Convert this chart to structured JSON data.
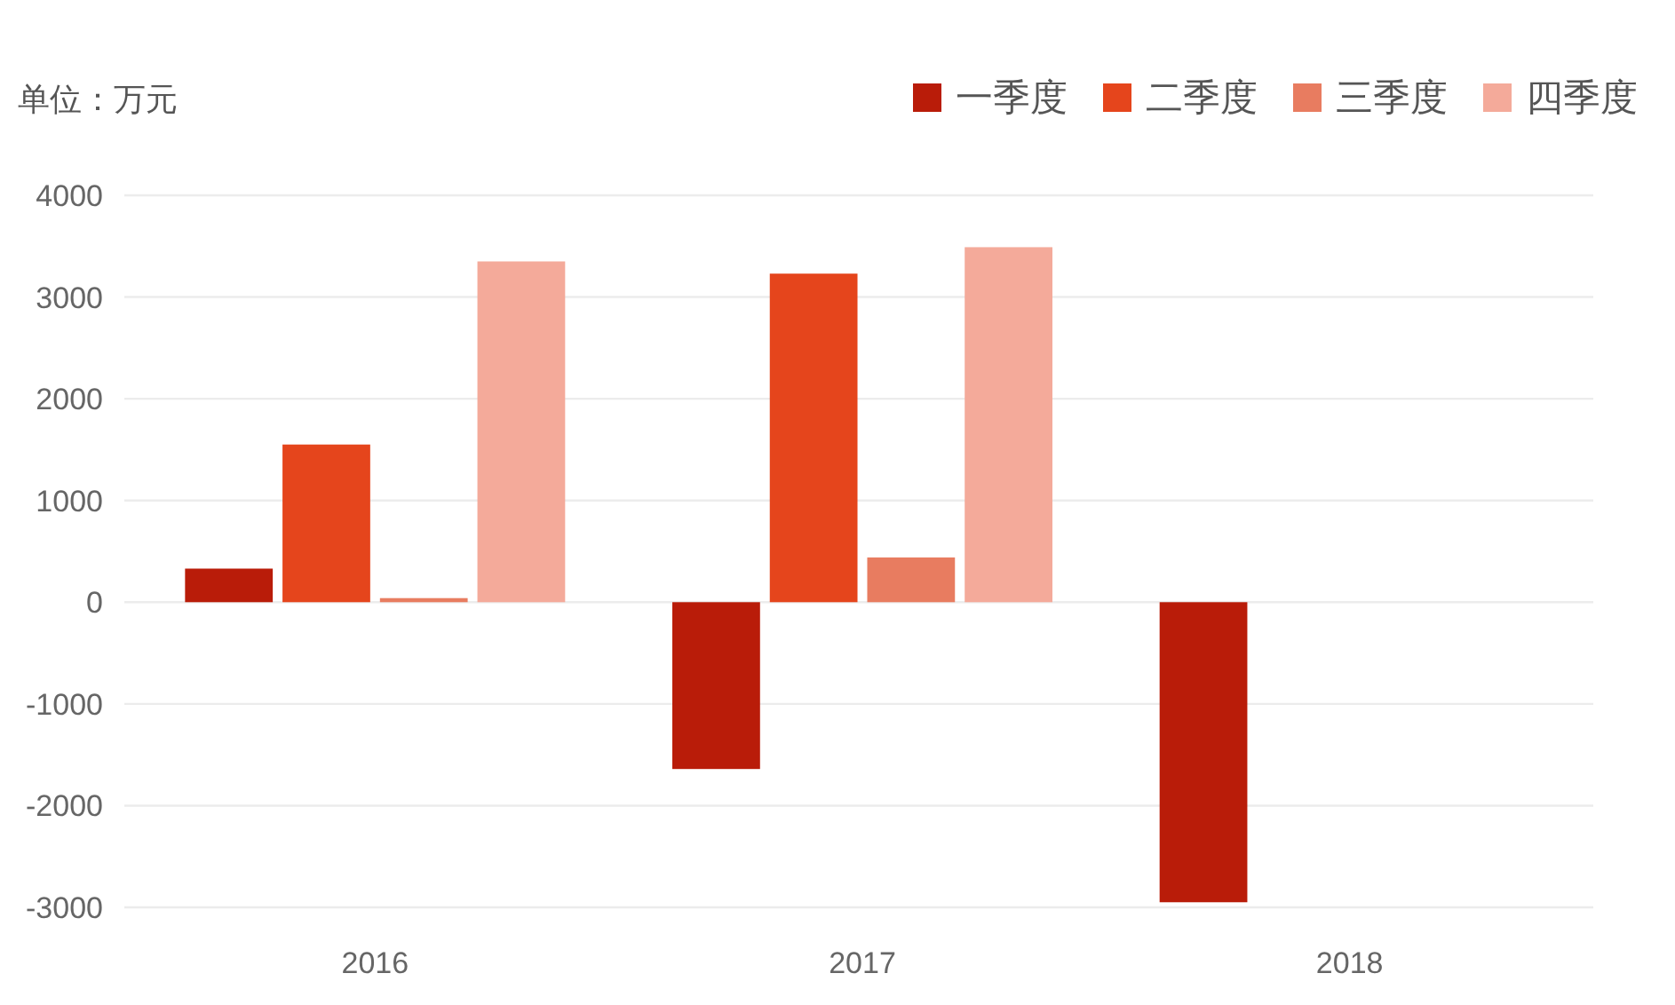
{
  "chart_data": {
    "type": "bar",
    "ylabel": "单位：万元",
    "categories": [
      "2016",
      "2017",
      "2018"
    ],
    "series": [
      {
        "name": "一季度",
        "color": "#b91c09",
        "values": [
          330,
          -1640,
          -2950
        ]
      },
      {
        "name": "二季度",
        "color": "#e5451c",
        "values": [
          1550,
          3230,
          null
        ]
      },
      {
        "name": "三季度",
        "color": "#e87c60",
        "values": [
          40,
          440,
          null
        ]
      },
      {
        "name": "四季度",
        "color": "#f4aa9a",
        "values": [
          3350,
          3490,
          null
        ]
      }
    ],
    "ylim": [
      -3000,
      4000
    ],
    "yticks": [
      -3000,
      -2000,
      -1000,
      0,
      1000,
      2000,
      3000,
      4000
    ],
    "grid": "y",
    "legend": "top right"
  }
}
